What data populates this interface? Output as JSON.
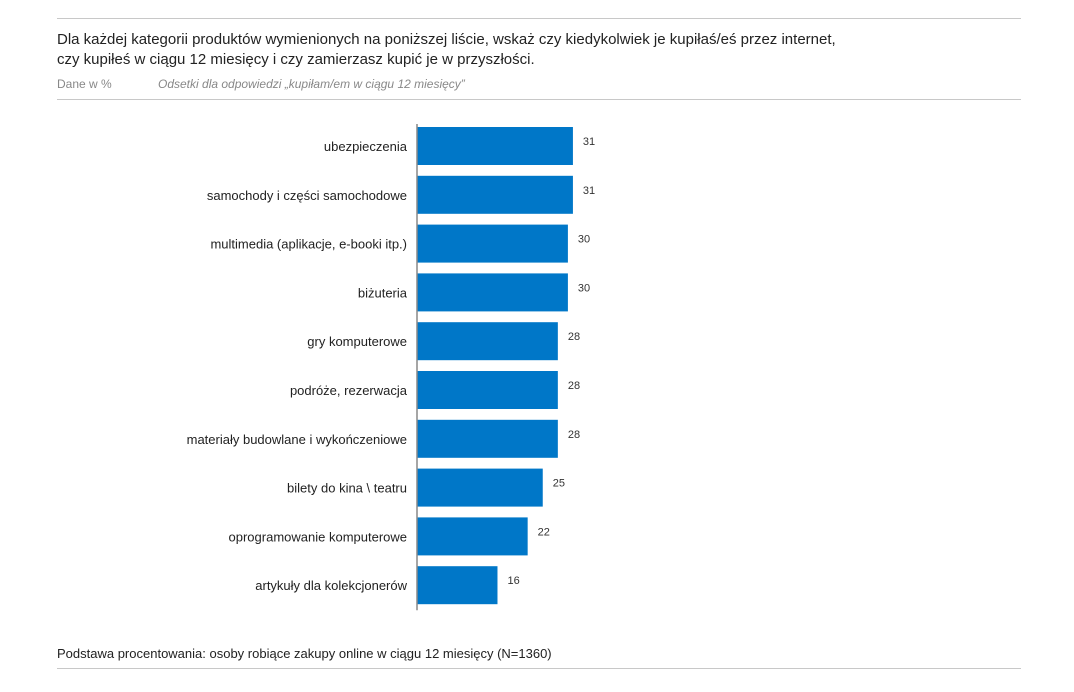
{
  "header": {
    "title_line1": "Dla każdej kategorii produktów wymienionych na poniższej liście, wskaż czy kiedykolwiek je kupiłaś/eś przez internet,",
    "title_line2": "czy kupiłeś w ciągu 12 miesięcy i czy zamierzasz kupić je w przyszłości.",
    "unit": "Dane w %",
    "subtitle": "Odsetki dla odpowiedzi „kupiłam/em w ciągu 12 miesięcy”"
  },
  "footer": {
    "note": "Podstawa procentowania: osoby robiące zakupy online w ciągu 12 miesięcy (N=1360)"
  },
  "chart_data": {
    "type": "bar",
    "orientation": "horizontal",
    "bar_color": "#0077c8",
    "categories": [
      "ubezpieczenia",
      "samochody i części samochodowe",
      "multimedia (aplikacje, e-booki itp.)",
      "biżuteria",
      "gry komputerowe",
      "podróże, rezerwacja",
      "materiały budowlane i wykończeniowe",
      "bilety do kina \\ teatru",
      "oprogramowanie komputerowe",
      "artykuły dla kolekcjonerów"
    ],
    "values": [
      31,
      31,
      30,
      30,
      28,
      28,
      28,
      25,
      22,
      16
    ],
    "grid": false
  }
}
